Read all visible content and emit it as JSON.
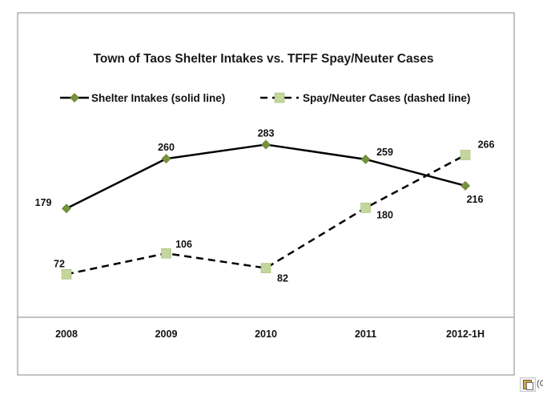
{
  "chart_data": {
    "type": "line",
    "title": "Town of Taos Shelter Intakes  vs.  TFFF Spay/Neuter Cases",
    "categories": [
      "2008",
      "2009",
      "2010",
      "2011",
      "2012-1H"
    ],
    "xlabel": "",
    "ylabel": "",
    "ylim": [
      0,
      300
    ],
    "grid": false,
    "legend_position": "top",
    "series": [
      {
        "name": "Shelter Intakes (solid line)",
        "line_style": "solid",
        "marker": "diamond",
        "line_color": "#000000",
        "marker_color": "#77933c",
        "values": [
          179,
          260,
          283,
          259,
          216
        ]
      },
      {
        "name": "Spay/Neuter Cases (dashed line)",
        "line_style": "dashed",
        "marker": "square",
        "line_color": "#000000",
        "marker_color": "#c3d69b",
        "values": [
          72,
          106,
          82,
          180,
          266
        ]
      }
    ]
  },
  "paste_options": {
    "icon": "clipboard-paste-icon",
    "caption": "(C"
  }
}
